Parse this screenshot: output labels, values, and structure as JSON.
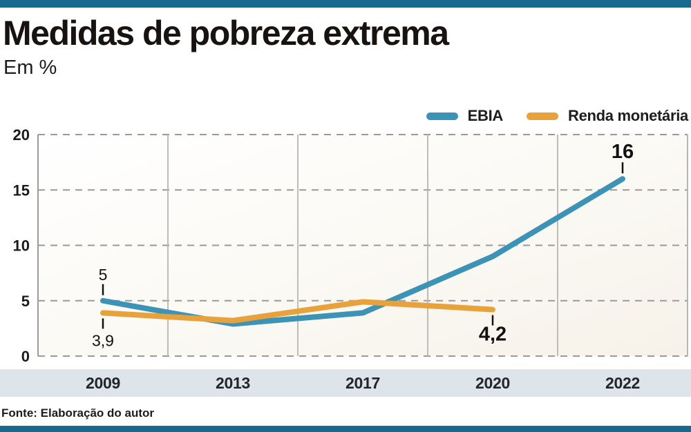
{
  "page": {
    "title": "Medidas de pobreza extrema",
    "subtitle": "Em %",
    "source": "Fonte: Elaboração do autor"
  },
  "colors": {
    "accent_bar": "#17698f",
    "ebia_line": "#3d93b5",
    "renda_line": "#e8a23c",
    "year_band": "#dde4ea",
    "grid_dash": "#999999",
    "separator": "#b5b5b5",
    "axis_border": "#9b9b9b",
    "annotation": "#111111",
    "tick_label": "#1b1b1b"
  },
  "chart_data": {
    "type": "line",
    "title": "Medidas de pobreza extrema",
    "unit": "Em %",
    "categories": [
      "2009",
      "2013",
      "2017",
      "2020",
      "2022"
    ],
    "series": [
      {
        "name": "EBIA",
        "color": "#3d93b5",
        "values": [
          5,
          2.9,
          3.9,
          9,
          16
        ]
      },
      {
        "name": "Renda monetária",
        "color": "#e8a23c",
        "values": [
          3.9,
          3.2,
          4.9,
          4.2,
          null
        ]
      }
    ],
    "ylim": [
      0,
      20
    ],
    "yticks": [
      0,
      5,
      10,
      15,
      20
    ],
    "grid": "horizontal-dashed",
    "legend_position": "top-right",
    "annotations": [
      {
        "series": "EBIA",
        "category": "2009",
        "text": "5",
        "position": "above",
        "bold": false
      },
      {
        "series": "Renda monetária",
        "category": "2009",
        "text": "3,9",
        "position": "below",
        "bold": false
      },
      {
        "series": "Renda monetária",
        "category": "2020",
        "text": "4,2",
        "position": "below",
        "bold": true
      },
      {
        "series": "EBIA",
        "category": "2022",
        "text": "16",
        "position": "above",
        "bold": true
      }
    ]
  }
}
